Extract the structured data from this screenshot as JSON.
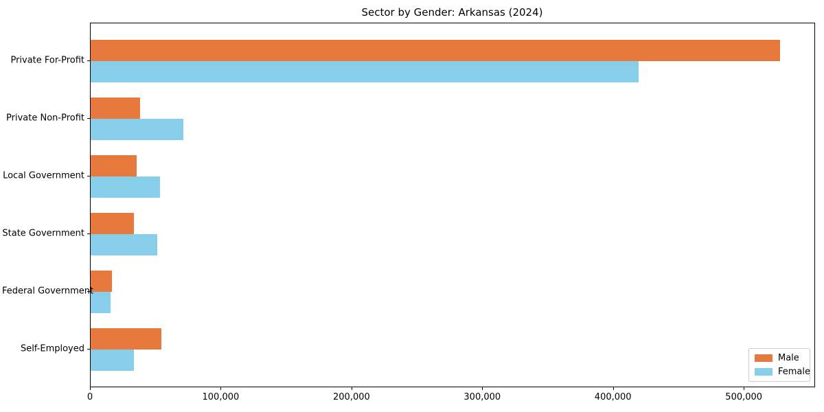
{
  "title": "Sector by Gender: Arkansas (2024)",
  "colors": {
    "male": "#E8793D",
    "female": "#87CEEB",
    "axis": "#000000",
    "legend_border": "#cccccc",
    "background": "#ffffff"
  },
  "legend": {
    "position": "lower right",
    "entries": [
      {
        "label": "Male",
        "color": "#E8793D"
      },
      {
        "label": "Female",
        "color": "#87CEEB"
      }
    ]
  },
  "chart_data": {
    "type": "bar",
    "orientation": "horizontal",
    "title": "Sector by Gender: Arkansas (2024)",
    "categories": [
      "Private For-Profit",
      "Private Non-Profit",
      "Local Government",
      "State Government",
      "Federal Government",
      "Self-Employed"
    ],
    "series": [
      {
        "name": "Male",
        "color": "#E8793D",
        "values": [
          527000,
          38000,
          35000,
          33000,
          16000,
          54000
        ]
      },
      {
        "name": "Female",
        "color": "#87CEEB",
        "values": [
          419000,
          71000,
          53000,
          51000,
          15000,
          33000
        ]
      }
    ],
    "xlabel": "",
    "ylabel": "",
    "xlim": [
      0,
      554000
    ],
    "x_ticks": [
      0,
      100000,
      200000,
      300000,
      400000,
      500000
    ],
    "x_tick_labels": [
      "0",
      "100,000",
      "200,000",
      "300,000",
      "400,000",
      "500,000"
    ],
    "grid": false,
    "legend_position": "lower right"
  }
}
